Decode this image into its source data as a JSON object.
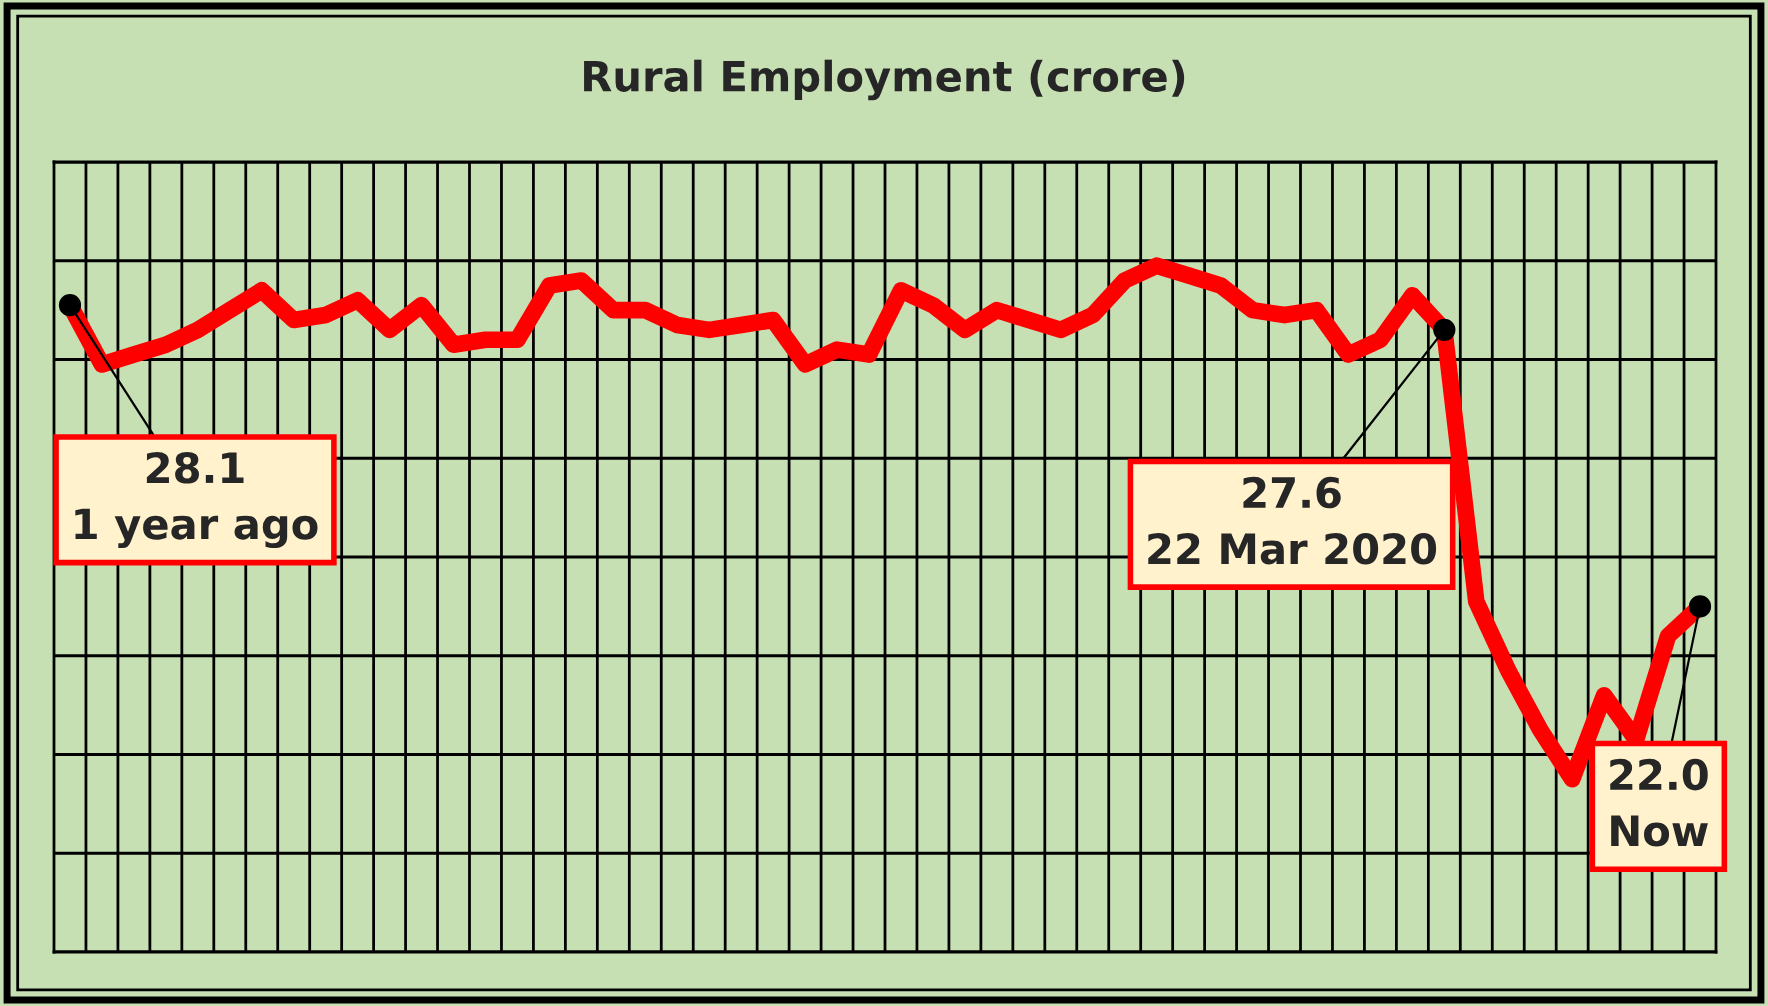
{
  "chart_data": {
    "type": "line",
    "title": "Rural Employment (crore)",
    "categories": [
      null,
      null,
      null,
      null,
      null,
      null,
      null,
      null,
      null,
      null,
      null,
      null,
      null,
      null,
      null,
      null,
      null,
      null,
      null,
      null,
      null,
      null,
      null,
      null,
      null,
      null,
      null,
      null,
      null,
      null,
      null,
      null,
      null,
      null,
      null,
      null,
      null,
      null,
      null,
      null,
      null,
      null,
      null,
      null,
      null,
      null,
      null,
      null,
      null,
      null,
      null,
      null
    ],
    "series": [
      {
        "color": "#ff0000",
        "values": [
          28.1,
          26.9,
          27.1,
          27.3,
          27.6,
          28.0,
          28.4,
          27.8,
          27.9,
          28.2,
          27.6,
          28.1,
          27.3,
          27.4,
          27.4,
          28.5,
          28.6,
          28.0,
          28.0,
          27.7,
          27.6,
          27.7,
          27.8,
          26.9,
          27.2,
          27.1,
          28.4,
          28.1,
          27.6,
          28.0,
          27.8,
          27.6,
          27.9,
          28.6,
          28.9,
          28.7,
          28.5,
          28.0,
          27.9,
          28.0,
          27.1,
          27.4,
          28.3,
          27.6,
          22.1,
          20.7,
          19.5,
          18.5,
          20.2,
          19.3,
          21.4,
          22.0
        ],
        "value_labels": [
          "28.1\n1 year ago",
          null,
          null,
          null,
          null,
          null,
          null,
          null,
          null,
          null,
          null,
          null,
          null,
          null,
          null,
          null,
          null,
          null,
          null,
          null,
          null,
          null,
          null,
          null,
          null,
          null,
          null,
          null,
          null,
          null,
          null,
          null,
          null,
          null,
          null,
          null,
          null,
          null,
          null,
          null,
          null,
          null,
          null,
          "27.6\n22 Mar 2020",
          null,
          null,
          null,
          null,
          null,
          null,
          null,
          "22.0\nNow"
        ]
      }
    ],
    "ylim": [
      15,
      31
    ],
    "yticks": [
      {
        "value": 15,
        "label": null
      },
      {
        "value": 17,
        "label": null
      },
      {
        "value": 19,
        "label": null
      },
      {
        "value": 21,
        "label": null
      },
      {
        "value": 23,
        "label": null
      },
      {
        "value": 25,
        "label": null
      },
      {
        "value": 27,
        "label": null
      },
      {
        "value": 29,
        "label": null
      },
      {
        "value": 31,
        "label": null
      }
    ],
    "grid": true,
    "marker": "none",
    "line_style": "solid",
    "legend": false
  }
}
